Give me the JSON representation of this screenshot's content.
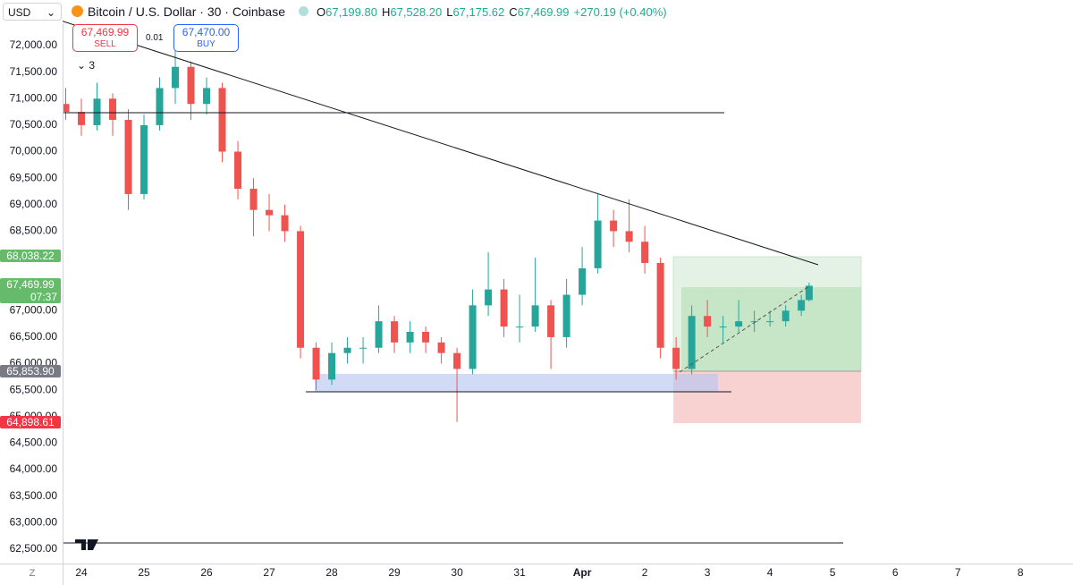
{
  "header": {
    "symbol": "USD",
    "title": "Bitcoin / U.S. Dollar · 30 · Coinbase",
    "ohlc": [
      {
        "key": "O",
        "value": "67,199.80"
      },
      {
        "key": "H",
        "value": "67,528.20"
      },
      {
        "key": "L",
        "value": "67,175.62"
      },
      {
        "key": "C",
        "value": "67,469.99"
      }
    ],
    "change": "+270.19 (+0.40%)"
  },
  "order_panel": {
    "sell_price": "67,469.99",
    "sell_label": "SELL",
    "spread": "0.01",
    "buy_price": "67,470.00",
    "buy_label": "BUY"
  },
  "indicator_toggle": "3",
  "corner_label": "Z",
  "chart_data": {
    "type": "candlestick",
    "x": [
      -0.25,
      0,
      0.25,
      0.5,
      0.75,
      1,
      1.25,
      1.5,
      1.75,
      2,
      2.25,
      2.5,
      2.75,
      3,
      3.25,
      3.5,
      3.75,
      4,
      4.25,
      4.5,
      4.75,
      5,
      5.25,
      5.5,
      5.75,
      6,
      6.25,
      6.5,
      6.75,
      7,
      7.25,
      7.5,
      7.75,
      8,
      8.25,
      8.5,
      8.75,
      9,
      9.25,
      9.5,
      9.75,
      10,
      10.25,
      10.5,
      10.75,
      11,
      11.25,
      11.5,
      11.625
    ],
    "open": [
      70900,
      70750,
      70500,
      71000,
      70600,
      69200,
      70500,
      71200,
      71600,
      70900,
      71200,
      70000,
      69300,
      68900,
      68800,
      68500,
      66300,
      65700,
      66200,
      66300,
      66300,
      66800,
      66400,
      66600,
      66400,
      66200,
      65900,
      67100,
      67400,
      66700,
      66700,
      67100,
      66500,
      67300,
      67800,
      68700,
      68500,
      68300,
      67900,
      66300,
      65900,
      66900,
      66700,
      66700,
      66800,
      66800,
      66800,
      67000,
      67199.8
    ],
    "high": [
      71200,
      71000,
      71300,
      71100,
      70800,
      70700,
      71400,
      71900,
      71700,
      71400,
      71300,
      70200,
      69500,
      69200,
      69000,
      68600,
      66400,
      66400,
      66500,
      66500,
      67100,
      66900,
      66800,
      66700,
      66500,
      66300,
      67400,
      68100,
      67600,
      67300,
      68000,
      67200,
      67600,
      68200,
      69200,
      68900,
      69100,
      68600,
      68000,
      66500,
      67100,
      67200,
      66900,
      67200,
      67000,
      67000,
      67100,
      67300,
      67528.2
    ],
    "low": [
      70600,
      70300,
      70400,
      70300,
      68900,
      69100,
      70400,
      70900,
      70600,
      70700,
      69800,
      69100,
      68400,
      68500,
      68300,
      66100,
      65500,
      65600,
      66000,
      66000,
      66200,
      66200,
      66200,
      66200,
      66000,
      64900,
      65800,
      66900,
      66500,
      66400,
      66600,
      65900,
      66300,
      67100,
      67700,
      68200,
      68100,
      67700,
      66100,
      65700,
      65800,
      66500,
      66400,
      66600,
      66600,
      66700,
      66700,
      66900,
      67175.62
    ],
    "close": [
      70750,
      70500,
      71000,
      70600,
      69200,
      70500,
      71200,
      71600,
      70900,
      71200,
      70000,
      69300,
      68900,
      68800,
      68500,
      66300,
      65700,
      66200,
      66300,
      66300,
      66800,
      66400,
      66600,
      66400,
      66200,
      65900,
      67100,
      67400,
      66700,
      66700,
      67100,
      66500,
      67300,
      67800,
      68700,
      68500,
      68300,
      67900,
      66300,
      65900,
      66900,
      66700,
      66700,
      66800,
      66800,
      66800,
      67000,
      67199.8,
      67469.99
    ],
    "up_color": "#26a69a",
    "down_color": "#ef5350",
    "xlim": [
      -0.3,
      15.84
    ],
    "xticks": [
      {
        "value": 0,
        "label": "24"
      },
      {
        "value": 1,
        "label": "25"
      },
      {
        "value": 2,
        "label": "26"
      },
      {
        "value": 3,
        "label": "27"
      },
      {
        "value": 4,
        "label": "28"
      },
      {
        "value": 5,
        "label": "29"
      },
      {
        "value": 6,
        "label": "30"
      },
      {
        "value": 7,
        "label": "31"
      },
      {
        "value": 8,
        "label": "Apr"
      },
      {
        "value": 9,
        "label": "2"
      },
      {
        "value": 10,
        "label": "3"
      },
      {
        "value": 11,
        "label": "4"
      },
      {
        "value": 12,
        "label": "5"
      },
      {
        "value": 13,
        "label": "6"
      },
      {
        "value": 14,
        "label": "7"
      },
      {
        "value": 15,
        "label": "8"
      }
    ],
    "ylim": [
      62229,
      72861
    ],
    "yticks": [
      {
        "value": 62500,
        "label": "62,500.00"
      },
      {
        "value": 63000,
        "label": "63,000.00"
      },
      {
        "value": 63500,
        "label": "63,500.00"
      },
      {
        "value": 64000,
        "label": "64,000.00"
      },
      {
        "value": 64500,
        "label": "64,500.00"
      },
      {
        "value": 65000,
        "label": "65,000.00"
      },
      {
        "value": 65500,
        "label": "65,500.00"
      },
      {
        "value": 66000,
        "label": "66,000.00"
      },
      {
        "value": 66500,
        "label": "66,500.00"
      },
      {
        "value": 67000,
        "label": "67,000.00"
      },
      {
        "value": 67500,
        "label": "67,500.00"
      },
      {
        "value": 68000,
        "label": "68,000.00"
      },
      {
        "value": 68500,
        "label": "68,500.00"
      },
      {
        "value": 69000,
        "label": "69,000.00"
      },
      {
        "value": 69500,
        "label": "69,500.00"
      },
      {
        "value": 70000,
        "label": "70,000.00"
      },
      {
        "value": 70500,
        "label": "70,500.00"
      },
      {
        "value": 71000,
        "label": "71,000.00"
      },
      {
        "value": 71500,
        "label": "71,500.00"
      },
      {
        "value": 72000,
        "label": "72,000.00"
      }
    ],
    "grid": false,
    "price_tags": [
      {
        "value": 68038.22,
        "label": "68,038.22",
        "color": "#66bb6a"
      },
      {
        "value": 67469.99,
        "label": "67,469.99",
        "countdown": "07:37",
        "color": "#66bb6a"
      },
      {
        "value": 65853.9,
        "label": "65,853.90",
        "color": "#787b86"
      },
      {
        "value": 64898.61,
        "label": "64,898.61",
        "color": "#f23645"
      }
    ]
  }
}
